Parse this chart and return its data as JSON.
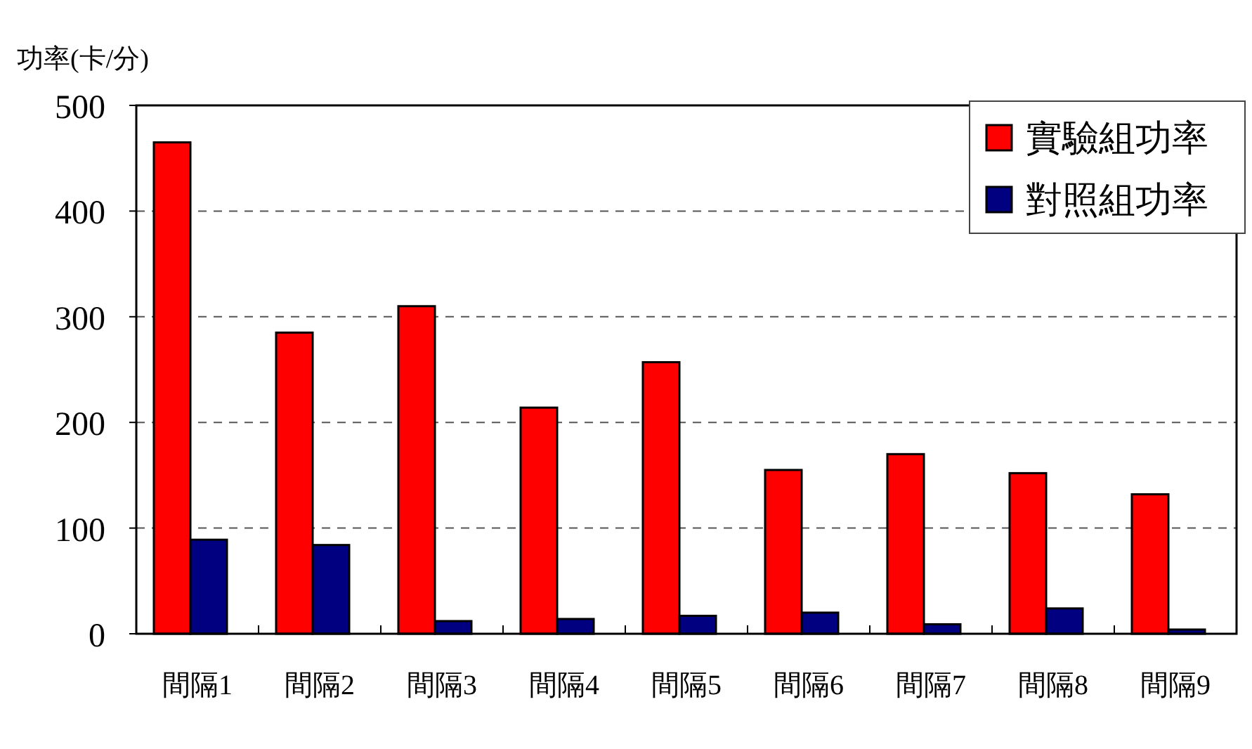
{
  "chart_data": {
    "type": "bar",
    "ylabel": "功率(卡/分)",
    "categories": [
      "間隔1",
      "間隔2",
      "間隔3",
      "間隔4",
      "間隔5",
      "間隔6",
      "間隔7",
      "間隔8",
      "間隔9"
    ],
    "series": [
      {
        "name": "實驗組功率",
        "color": "#ff0000",
        "values": [
          465,
          285,
          310,
          214,
          257,
          155,
          170,
          152,
          132
        ]
      },
      {
        "name": "對照組功率",
        "color": "#000080",
        "values": [
          89,
          84,
          12,
          14,
          17,
          20,
          9,
          24,
          4
        ]
      }
    ],
    "ylim": [
      0,
      500
    ],
    "yticks": [
      0,
      100,
      200,
      300,
      400,
      500
    ],
    "grid": "y",
    "legend": "top right"
  }
}
